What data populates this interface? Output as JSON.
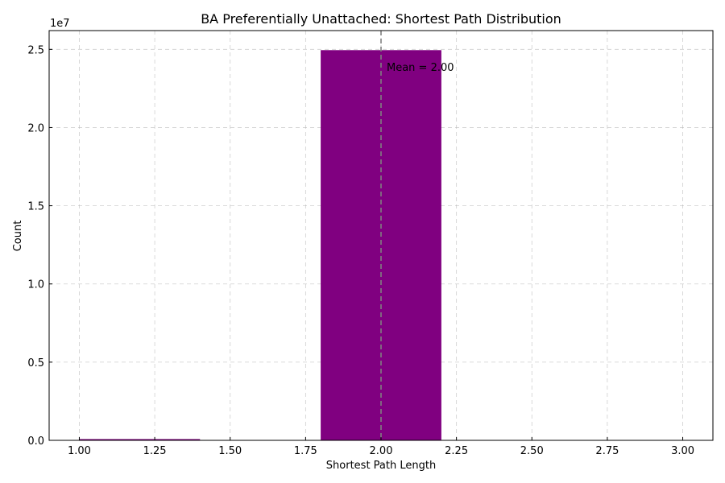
{
  "chart_data": {
    "type": "bar",
    "title": "BA Preferentially Unattached: Shortest Path Distribution",
    "xlabel": "Shortest Path Length",
    "ylabel": "Count",
    "y_offset_label": "1e7",
    "xlim": [
      0.9,
      3.1
    ],
    "ylim": [
      0,
      2.62
    ],
    "y_scale_exponent": 7,
    "x_ticks": [
      1.0,
      1.25,
      1.5,
      1.75,
      2.0,
      2.25,
      2.5,
      2.75,
      3.0
    ],
    "x_tick_labels": [
      "1.00",
      "1.25",
      "1.50",
      "1.75",
      "2.00",
      "2.25",
      "2.50",
      "2.75",
      "3.00"
    ],
    "y_ticks": [
      0,
      0.5,
      1.0,
      1.5,
      2.0,
      2.5
    ],
    "y_tick_labels": [
      "0.0",
      "0.5",
      "1.0",
      "1.5",
      "2.0",
      "2.5"
    ],
    "bins": [
      {
        "x_start": 1.0,
        "x_end": 1.4,
        "value": 0.008
      },
      {
        "x_start": 1.8,
        "x_end": 2.2,
        "value": 2.495
      }
    ],
    "bar_color": "#800080",
    "mean": {
      "x": 2.0,
      "label": "Mean = 2.00",
      "color": "#808080"
    },
    "grid": true,
    "legend": "none"
  }
}
